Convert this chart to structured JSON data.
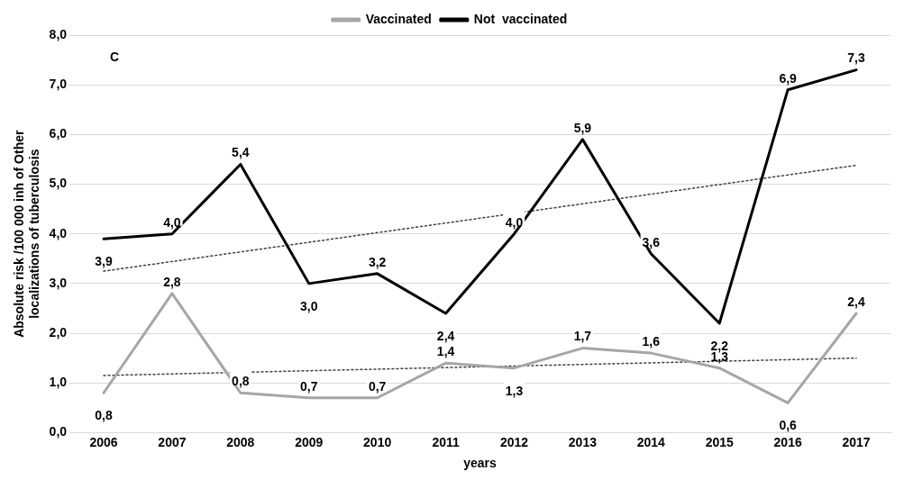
{
  "chart_data": {
    "type": "line",
    "xlabel": "years",
    "ylabel": "Absolute risk /100 000 inh of Other localizations of tuberculosis",
    "categories": [
      "2006",
      "2007",
      "2008",
      "2009",
      "2010",
      "2011",
      "2012",
      "2013",
      "2014",
      "2015",
      "2016",
      "2017"
    ],
    "series": [
      {
        "name": "Vaccinated",
        "color": "#a6a6a6",
        "values": [
          0.8,
          2.8,
          0.8,
          0.7,
          0.7,
          1.4,
          1.3,
          1.7,
          1.6,
          1.3,
          0.6,
          2.4
        ],
        "value_labels": [
          "0,8",
          "2,8",
          "0,8",
          "0,7",
          "0,7",
          "1,4",
          "1,3",
          "1,7",
          "1,6",
          "1,3",
          "0,6",
          "2,4"
        ]
      },
      {
        "name": "Not  vaccinated",
        "color": "#000000",
        "values": [
          3.9,
          4.0,
          5.4,
          3.0,
          3.2,
          2.4,
          4.0,
          5.9,
          3.6,
          2.2,
          6.9,
          7.3
        ],
        "value_labels": [
          "3,9",
          "4,0",
          "5,4",
          "3,0",
          "3,2",
          "2,4",
          "4,0",
          "5,9",
          "3,6",
          "2,2",
          "6,9",
          "7,3"
        ]
      },
      {
        "type": "line",
        "color": "#404040",
        "line_style": "dotted",
        "values": [
          1.15,
          null,
          null,
          null,
          null,
          null,
          null,
          null,
          null,
          null,
          null,
          1.5
        ]
      },
      {
        "type": "line",
        "color": "#404040",
        "line_style": "dotted",
        "values": [
          3.25,
          null,
          null,
          null,
          null,
          null,
          null,
          null,
          null,
          null,
          null,
          5.38
        ]
      }
    ],
    "ylim": [
      0,
      8
    ],
    "yticks": [
      {
        "value": 0,
        "label": "0,0"
      },
      {
        "value": 1,
        "label": "1,0"
      },
      {
        "value": 2,
        "label": "2,0"
      },
      {
        "value": 3,
        "label": "3,0"
      },
      {
        "value": 4,
        "label": "4,0"
      },
      {
        "value": 5,
        "label": "5,0"
      },
      {
        "value": 6,
        "label": "6,0"
      },
      {
        "value": 7,
        "label": "7,0"
      },
      {
        "value": 8,
        "label": "8,0"
      }
    ],
    "grid": "y",
    "legend": "top",
    "marker": "none",
    "line_style": "solid",
    "annotations": [
      "C"
    ]
  }
}
